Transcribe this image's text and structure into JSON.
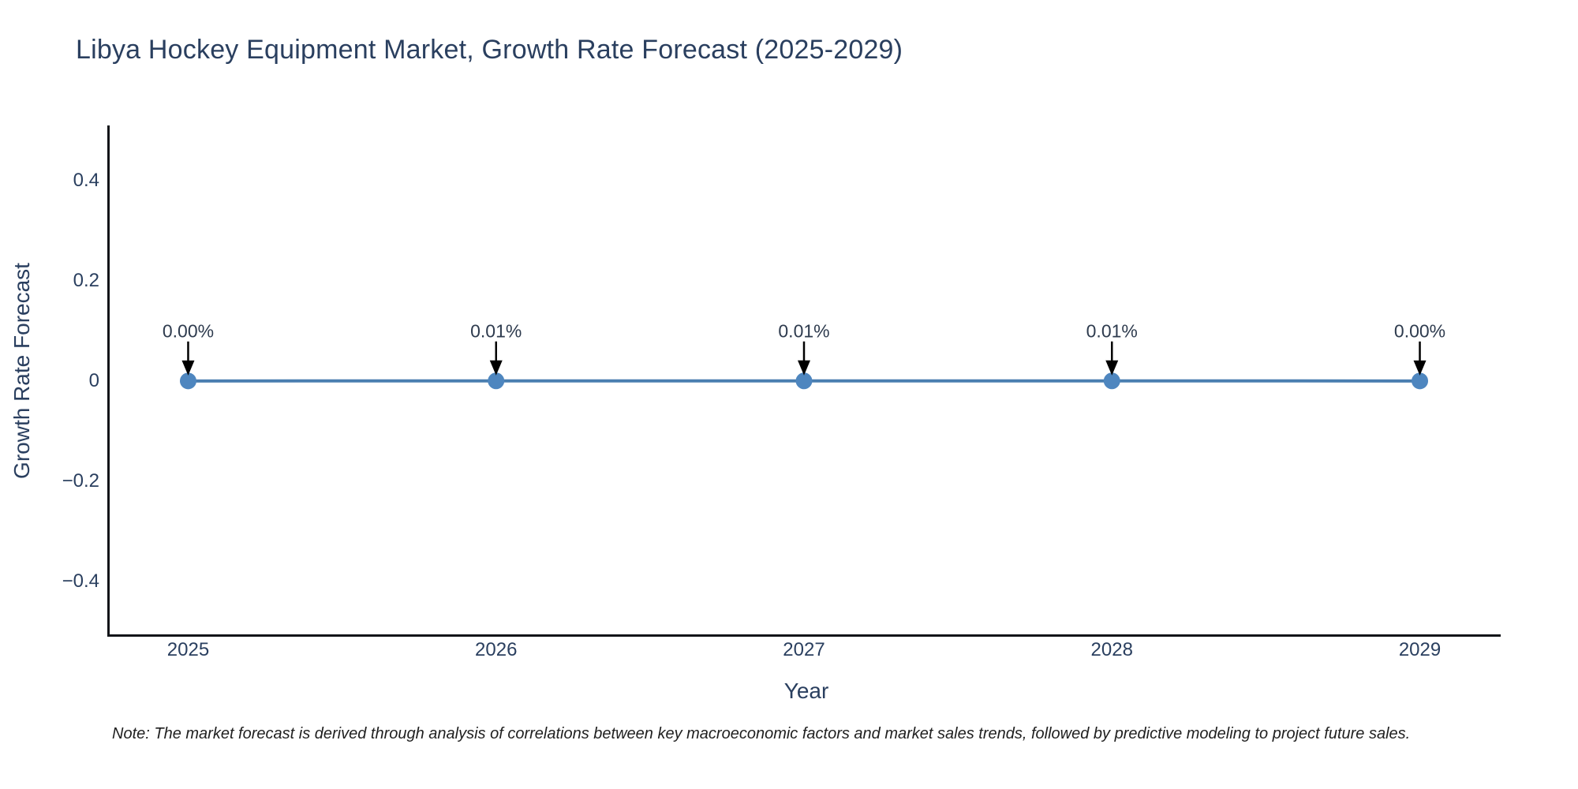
{
  "chart": {
    "title": "Libya Hockey Equipment Market, Growth Rate Forecast (2025-2029)",
    "xlabel": "Year",
    "ylabel": "Growth Rate Forecast",
    "note": "Note: The market forecast is derived through analysis of correlations between key macroeconomic factors and market sales trends, followed by predictive modeling to project future sales."
  },
  "chart_data": {
    "type": "line",
    "title": "Libya Hockey Equipment Market, Growth Rate Forecast (2025-2029)",
    "xlabel": "Year",
    "ylabel": "Growth Rate Forecast",
    "x": [
      2025,
      2026,
      2027,
      2028,
      2029
    ],
    "values": [
      0.0,
      0.0001,
      0.0001,
      0.0001,
      0.0
    ],
    "point_labels": [
      "0.00%",
      "0.01%",
      "0.01%",
      "0.01%",
      "0.00%"
    ],
    "xlim": [
      2024.74,
      2029.26
    ],
    "ylim": [
      -0.507,
      0.508
    ],
    "yticks": [
      {
        "value": 0.4,
        "label": "0.4"
      },
      {
        "value": 0.2,
        "label": "0.2"
      },
      {
        "value": 0,
        "label": "0"
      },
      {
        "value": -0.2,
        "label": "−0.2"
      },
      {
        "value": -0.4,
        "label": "−0.4"
      }
    ],
    "xticks": [
      {
        "value": 2025,
        "label": "2025"
      },
      {
        "value": 2026,
        "label": "2026"
      },
      {
        "value": 2027,
        "label": "2027"
      },
      {
        "value": 2028,
        "label": "2028"
      },
      {
        "value": 2029,
        "label": "2029"
      }
    ],
    "grid": false,
    "legend": false,
    "colors": {
      "line": "#4a7eb0",
      "marker": "#4e86bf",
      "axis": "#111418",
      "text": "#2a3f5f",
      "annotation": "#2e3b4e",
      "arrow": "#000000",
      "background": "#ffffff"
    }
  }
}
